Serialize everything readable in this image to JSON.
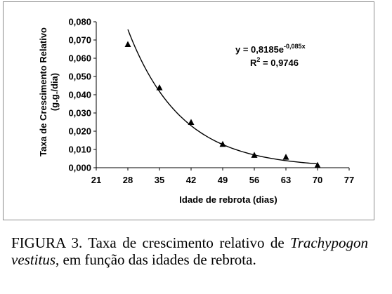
{
  "chart_data": {
    "type": "scatter",
    "xlabel": "Idade de rebrota (dias)",
    "ylabel": "Taxa de Crescimento Relativo",
    "ylabel_unit": "(g.g./dia)",
    "x_ticks": [
      "21",
      "28",
      "35",
      "42",
      "49",
      "56",
      "63",
      "70",
      "77"
    ],
    "y_ticks": [
      "0,000",
      "0,010",
      "0,020",
      "0,030",
      "0,040",
      "0,050",
      "0,060",
      "0,070",
      "0,080"
    ],
    "xlim": [
      21,
      77
    ],
    "ylim": [
      0,
      0.08
    ],
    "series": [
      {
        "x": [
          28,
          35,
          42,
          49,
          56,
          63,
          70
        ],
        "y": [
          0.0675,
          0.0438,
          0.0248,
          0.0128,
          0.0068,
          0.0057,
          0.0013
        ]
      }
    ],
    "trendline": {
      "type": "exponential",
      "a": 0.8185,
      "b": -0.085,
      "x_range": [
        28,
        70
      ]
    },
    "equation_prefix": "y = 0,8185e",
    "equation_exponent": "-0,085x",
    "r2_prefix": "R",
    "r2_exp": "2",
    "r2_value": " = 0,9746",
    "marker_color": "#000000",
    "line_color": "#000000"
  },
  "caption": {
    "prefix": "FIGURA 3. Taxa de crescimento relativo de",
    "species": "Trachypogon vestitus",
    "suffix": ", em função das idades de rebrota."
  }
}
